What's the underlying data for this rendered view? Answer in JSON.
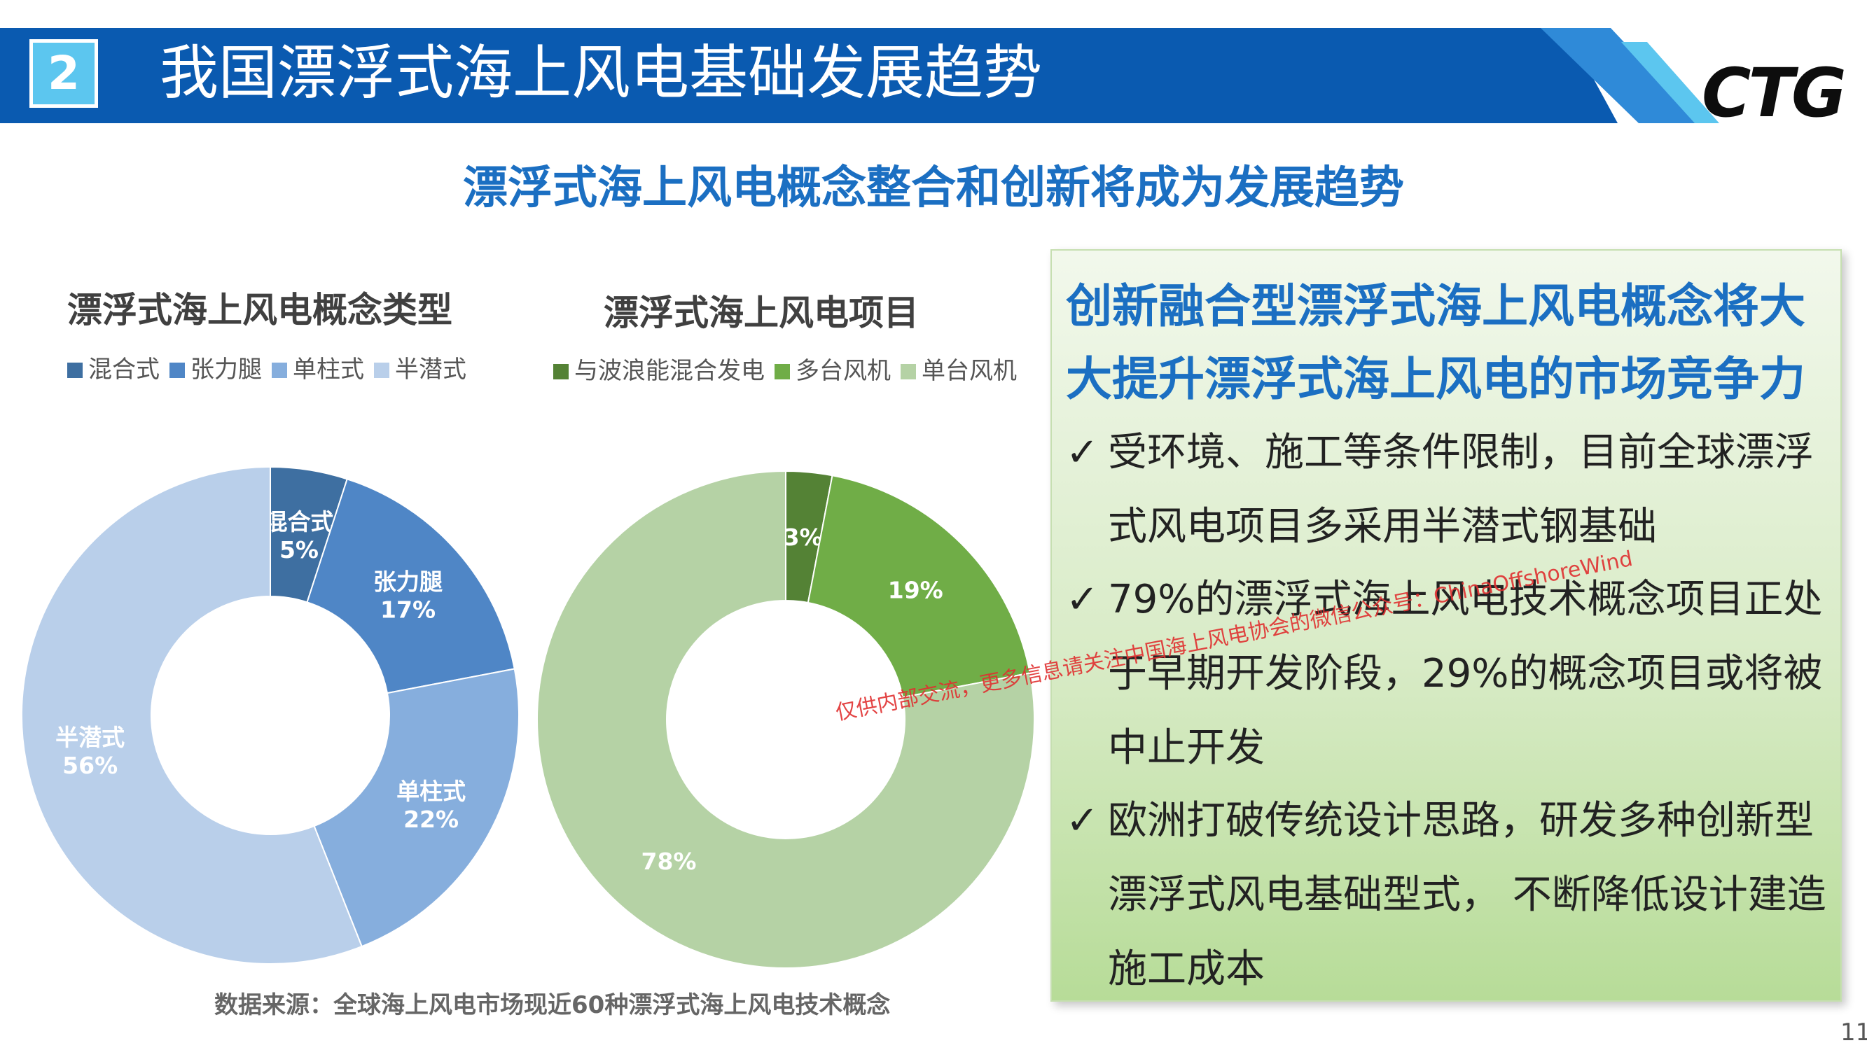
{
  "header": {
    "section_number": "2",
    "title": "我国漂浮式海上风电基础发展趋势",
    "logo_text": "CTG",
    "bar_color": "#0a5ab0"
  },
  "subtitle": "漂浮式海上风电概念整合和创新将成为发展趋势",
  "chart_data": [
    {
      "type": "pie",
      "title": "漂浮式海上风电概念类型",
      "categories": [
        "混合式",
        "张力腿",
        "单柱式",
        "半潜式"
      ],
      "values": [
        5,
        17,
        22,
        56
      ],
      "labels": [
        "5%",
        "17%",
        "22%",
        "56%"
      ],
      "colors": [
        "#3e6fa1",
        "#4f86c6",
        "#86aedd",
        "#b9cfea"
      ],
      "legend": "top"
    },
    {
      "type": "pie",
      "title": "漂浮式海上风电项目",
      "categories": [
        "与波浪能混合发电",
        "多台风机",
        "单台风机"
      ],
      "values": [
        3,
        19,
        78
      ],
      "labels": [
        "3%",
        "19%",
        "78%"
      ],
      "colors": [
        "#548235",
        "#70ad47",
        "#b5d2a5"
      ],
      "legend": "top"
    }
  ],
  "source_note": "数据来源：全球海上风电市场现近60种漂浮式海上风电技术概念",
  "panel": {
    "heading_lines": [
      "创新融合型漂浮式海上风电概念将大",
      "大提升漂浮式海上风电的市场竞争力"
    ],
    "check": "✓",
    "bullets": [
      {
        "lines": [
          "受环境、施工等条件限制，目前全球漂浮",
          "式风电项目多采用半潜式钢基础"
        ]
      },
      {
        "lines": [
          "79%的漂浮式海上风电技术概念项目正处",
          "于早期开发阶段，29%的概念项目或将被",
          "中止开发"
        ]
      },
      {
        "lines": [
          "欧洲打破传统设计思路，研发多种创新型",
          "漂浮式风电基础型式， 不断降低设计建造",
          "施工成本"
        ]
      }
    ]
  },
  "watermark": "仅供内部交流，更多信息请关注中国海上风电协会的微信公众号：ChinaOffshoreWind",
  "page_number": "11"
}
